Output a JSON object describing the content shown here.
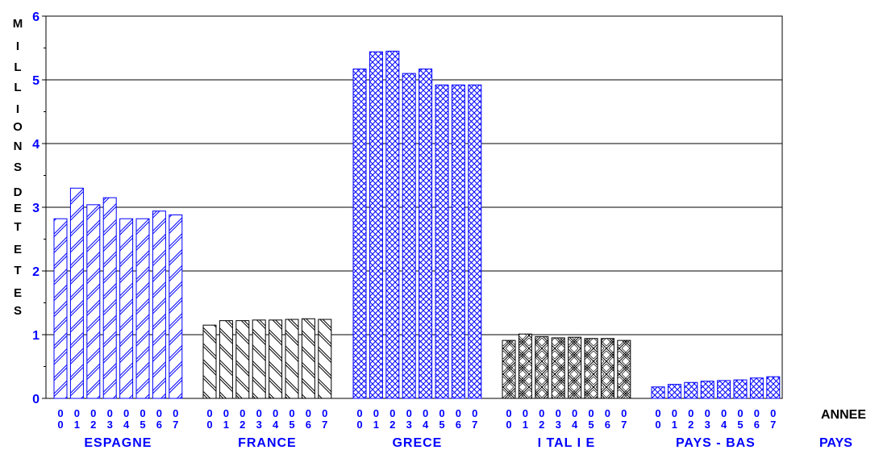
{
  "chart_data": {
    "type": "bar",
    "ylabel": "MILLIONS DE TETES",
    "xlabel_top": "ANNEE",
    "xlabel_bottom": "PAYS",
    "ylim": [
      0,
      6
    ],
    "yticks": [
      "0",
      "1",
      "2",
      "3",
      "4",
      "5",
      "6"
    ],
    "grid": true,
    "year_labels": [
      [
        "0",
        "0"
      ],
      [
        "0",
        "1"
      ],
      [
        "0",
        "2"
      ],
      [
        "0",
        "3"
      ],
      [
        "0",
        "4"
      ],
      [
        "0",
        "5"
      ],
      [
        "0",
        "6"
      ],
      [
        "0",
        "7"
      ]
    ],
    "groups": [
      {
        "name": "ESPAGNE",
        "color": "#0000ff",
        "pattern": "diag-back",
        "values": [
          2.82,
          3.3,
          3.04,
          3.15,
          2.82,
          2.82,
          2.94,
          2.88
        ]
      },
      {
        "name": "FRANCE",
        "color": "#000000",
        "pattern": "diag-fwd",
        "values": [
          1.15,
          1.22,
          1.22,
          1.23,
          1.23,
          1.24,
          1.25,
          1.24
        ]
      },
      {
        "name": "GRECE",
        "color": "#0000ff",
        "pattern": "crosshatch",
        "values": [
          5.17,
          5.44,
          5.45,
          5.1,
          5.17,
          4.92,
          4.92,
          4.92
        ]
      },
      {
        "name": "I TAL I E",
        "color": "#000000",
        "pattern": "crosshatch-dense",
        "values": [
          0.91,
          1.01,
          0.97,
          0.95,
          0.96,
          0.94,
          0.94,
          0.91
        ]
      },
      {
        "name": "PAYS - BAS",
        "color": "#0000ff",
        "pattern": "crosshatch",
        "values": [
          0.18,
          0.22,
          0.25,
          0.27,
          0.28,
          0.29,
          0.32,
          0.34
        ]
      }
    ]
  }
}
